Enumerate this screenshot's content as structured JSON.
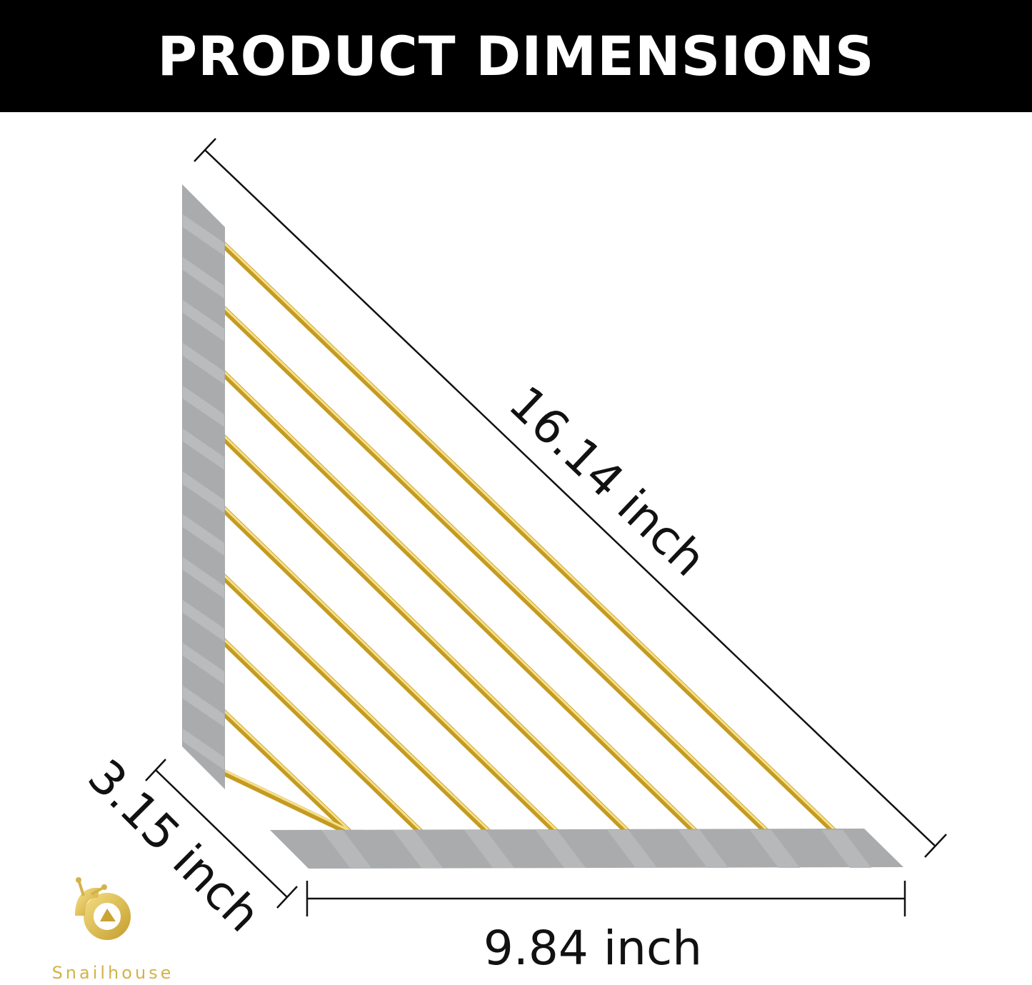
{
  "header": {
    "title": "PRODUCT DIMENSIONS"
  },
  "dimensions": {
    "diagonal": "16.14 inch",
    "width": "3.15 inch",
    "length": "9.84 inch"
  },
  "brand": {
    "name": "Snailhouse"
  },
  "colors": {
    "header_bg": "#000000",
    "rod_gold": "#c9a227",
    "bar_gray": "#a9abad",
    "logo_gold": "#d4b24a"
  },
  "rod_count": 9
}
